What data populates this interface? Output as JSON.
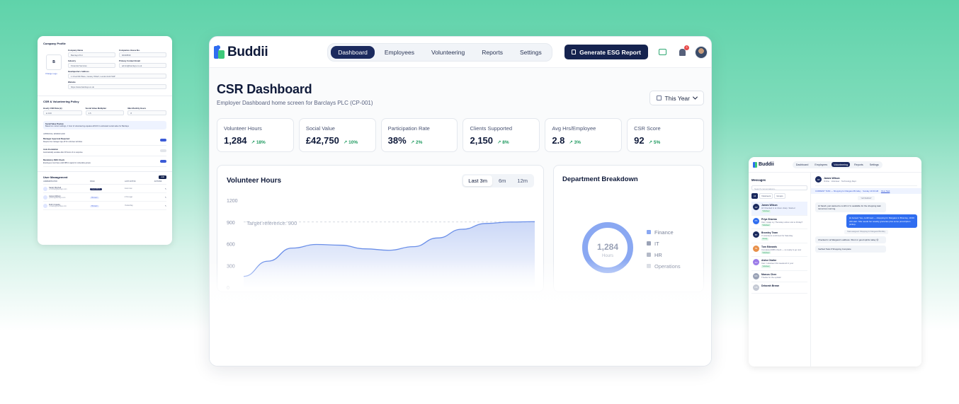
{
  "left_panel": {
    "company_profile_title": "Company Profile",
    "logo_letter": "B",
    "change_logo": "Change Logo",
    "fields": [
      {
        "label": "Company Name",
        "value": "Barclays PLC"
      },
      {
        "label": "Companies House No.",
        "value": "00048839"
      },
      {
        "label": "Industry",
        "value": "Financial Services"
      },
      {
        "label": "Primary Contact Email",
        "value": "admin@barclays.co.uk"
      },
      {
        "label": "Headquarters Address",
        "value": "1 Churchill Place, Canary Wharf, London E14 5HP"
      },
      {
        "label": "Website",
        "value": "https://www.barclays.co.uk"
      }
    ],
    "policy_title": "CSR & Volunteering Policy",
    "policy_fields": [
      {
        "label": "Hourly CSR Rate (£)",
        "value": "£ 2.00"
      },
      {
        "label": "Social Value Multiplier",
        "value": "1.5"
      },
      {
        "label": "Max Monthly Hours",
        "value": "8"
      }
    ],
    "note_title": "Social Value Preview",
    "note_text": "Based on current settings, 1 hour of volunteering equates £33.00 in estimated social value for Barclays",
    "approval_title": "APPROVAL WORKFLOW",
    "toggles": [
      {
        "label": "Manager Approval Required",
        "desc": "Require line manager sign-off for volunteer activities",
        "on": true
      },
      {
        "label": "Auto Escalation",
        "desc": "Automatically escalate after 48 hours of no response",
        "on": false
      },
      {
        "label": "Mandatory DBS Check",
        "desc": "Employees must have valid DBS to apply for vulnerable groups",
        "on": true
      }
    ],
    "user_mgmt_title": "User Management",
    "user_mgmt_btn": "Add",
    "table_headers": [
      "ADMINISTRATOR",
      "ROLE",
      "LAST ACTIVE",
      "ACTIONS"
    ],
    "users": [
      {
        "name": "Sarah Mitchell",
        "email": "s.mitchell@barclays.com",
        "role": "Super Admin",
        "last": "Just now",
        "dark": true
      },
      {
        "name": "James Wilson",
        "email": "j.wilson@barclays.com",
        "role": "Manager",
        "last": "2 hrs ago",
        "dark": false
      },
      {
        "name": "Ruth Crawley",
        "email": "r.crawley@barclays.com",
        "role": "Manager",
        "last": "Yesterday",
        "dark": false
      }
    ]
  },
  "main": {
    "brand": "Buddii",
    "nav": [
      {
        "label": "Dashboard",
        "active": true
      },
      {
        "label": "Employees",
        "active": false
      },
      {
        "label": "Volunteering",
        "active": false
      },
      {
        "label": "Reports",
        "active": false
      },
      {
        "label": "Settings",
        "active": false
      }
    ],
    "esg_button": "Generate ESG Report",
    "notification_count": "3",
    "title": "CSR Dashboard",
    "subtitle": "Employer Dashboard home screen for Barclays PLC (CP-001)",
    "period": "This Year",
    "stats": [
      {
        "label": "Volunteer Hours",
        "value": "1,284",
        "delta": "18%"
      },
      {
        "label": "Social Value",
        "value": "£42,750",
        "delta": "10%"
      },
      {
        "label": "Participation Rate",
        "value": "38%",
        "delta": "2%"
      },
      {
        "label": "Clients Supported",
        "value": "2,150",
        "delta": "8%"
      },
      {
        "label": "Avg Hrs/Employee",
        "value": "2.8",
        "delta": "3%"
      },
      {
        "label": "CSR Score",
        "value": "92",
        "delta": "5%"
      }
    ],
    "volunteer_chart": {
      "title": "Volunteer Hours",
      "ranges": [
        {
          "label": "Last 3m",
          "active": true
        },
        {
          "label": "6m",
          "active": false
        },
        {
          "label": "12m",
          "active": false
        }
      ],
      "target_label": "Target reference: 900"
    },
    "department": {
      "title": "Department Breakdown",
      "center_value": "1,284",
      "center_label": "Hours"
    }
  },
  "chart_data": [
    {
      "type": "area",
      "title": "Volunteer Hours",
      "yticks": [
        1200,
        900,
        600,
        300,
        0
      ],
      "ylim": [
        0,
        1200
      ],
      "target": 900,
      "x": [
        0,
        1,
        2,
        3,
        4,
        5,
        6,
        7,
        8,
        9,
        10,
        11,
        12
      ],
      "values": [
        150,
        360,
        540,
        590,
        580,
        530,
        510,
        560,
        680,
        800,
        880,
        900,
        905
      ],
      "color": "#6b8fe8"
    },
    {
      "type": "pie",
      "title": "Department Breakdown",
      "categories": [
        "Finance",
        "IT",
        "HR",
        "Operations"
      ],
      "values": [
        100,
        0,
        0,
        0
      ],
      "center_value": "1,284",
      "colors": [
        "#8aa8f2",
        "#9aa2b6",
        "#b4bac8",
        "#d4d8e0"
      ]
    }
  ],
  "right_panel": {
    "brand": "Buddii",
    "nav": [
      {
        "label": "Dashboard",
        "active": false
      },
      {
        "label": "Employees",
        "active": false
      },
      {
        "label": "Volunteering",
        "active": true
      },
      {
        "label": "Reports",
        "active": false
      },
      {
        "label": "Settings",
        "active": false
      }
    ],
    "messages_title": "Messages",
    "search_placeholder": "Search conversations...",
    "filters": [
      {
        "label": "All",
        "active": true
      },
      {
        "label": "Volunteers",
        "active": false
      },
      {
        "label": "Groups",
        "active": false
      }
    ],
    "conversations": [
      {
        "initials": "JW",
        "name": "James Wilson",
        "msg": "Hi! Checked in at 10am sharp. Started",
        "tag": "Volunteer",
        "color": "#1b2a5e",
        "active": true
      },
      {
        "initials": "PS",
        "name": "Priya Sharma",
        "msg": "Can I swap my Thursday Lisbon slot to Friday?",
        "tag": "Volunteer",
        "color": "#2f6df0",
        "active": false
      },
      {
        "initials": "BT",
        "name": "Bromley Team",
        "msg": "3 volunteers confirmed for Saturday",
        "tag": "Group",
        "color": "#1b2a5e",
        "active": false
      },
      {
        "initials": "TE",
        "name": "Tom Edwards",
        "msg": "Completed DBS check — so ready to go now",
        "tag": "Volunteer",
        "color": "#e8904a",
        "active": false
      },
      {
        "initials": "AO",
        "name": "Aisha Okafor",
        "msg": "Can I volunteer this weekend in your",
        "tag": "Volunteer",
        "color": "#9b7ae8",
        "active": false
      },
      {
        "initials": "MC",
        "name": "Marcus Chen",
        "msg": "Thanks for the update!",
        "tag": "",
        "color": "#9aa2b6",
        "active": false
      },
      {
        "initials": "DB",
        "name": "Deborah Brown",
        "msg": "",
        "tag": "",
        "color": "#c4c9d4",
        "active": false
      }
    ],
    "chat_name": "James Wilson",
    "chat_status": "Online · Volunteer · Technology Dept",
    "pinned": "CURRENT TASK — Shopping for Margaret Brindley · Sunday 10:00 AM",
    "pinned_link": "View Task",
    "day_label": "YESTERDAY",
    "messages": [
      {
        "dir": "in",
        "text": "Hi Sarah, just wanted to confirm I'm available for the shopping task tomorrow morning."
      },
      {
        "dir": "out",
        "text": "Hi James! Yes, confirmed — shopping for Margaret in Bromley, 10:00 AM start. She needs her weekly groceries plus some prescription pickup."
      },
      {
        "dir": "sys",
        "text": "Task assigned: Shopping for Margaret Brindley"
      },
      {
        "dir": "in",
        "text": "Checked in at Margaret's address. She's in good spirits today 😊"
      },
      {
        "dir": "in",
        "text": "Verified Task # Shopping Complete"
      }
    ]
  }
}
